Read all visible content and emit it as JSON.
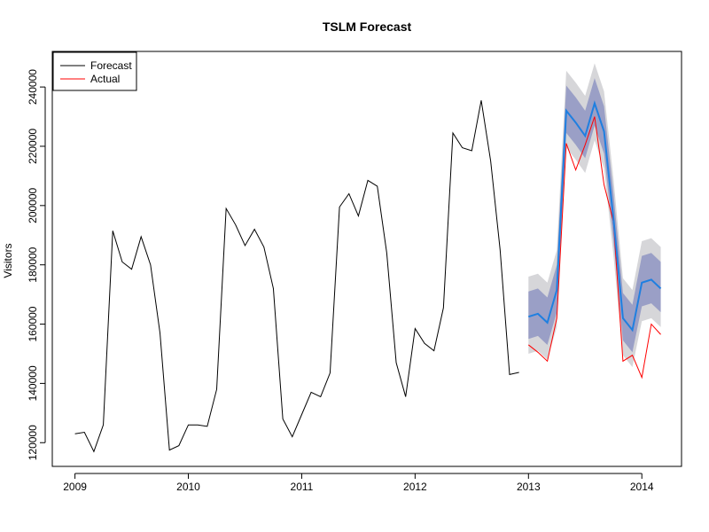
{
  "chart_data": {
    "type": "line",
    "title": "TSLM Forecast",
    "xlabel": "",
    "ylabel": "Visitors",
    "xlim": [
      2008.8,
      2014.35
    ],
    "ylim": [
      112000,
      252000
    ],
    "x_ticks": [
      2009,
      2010,
      2011,
      2012,
      2013,
      2014
    ],
    "y_ticks": [
      120000,
      140000,
      160000,
      180000,
      200000,
      220000,
      240000
    ],
    "grid": false,
    "legend": {
      "placement": "top-left",
      "entries": [
        {
          "label": "Forecast",
          "color": "#000000"
        },
        {
          "label": "Actual",
          "color": "#ff0000"
        }
      ]
    },
    "colors": {
      "history": "#000000",
      "forecast_mean": "#1f7fe0",
      "actual": "#ff0000",
      "band_80": "#9a9fc6",
      "band_95": "#d6d6d9"
    },
    "series": [
      {
        "kind": "history",
        "start": 2009.0,
        "step": 0.0833333,
        "values": [
          123000,
          123500,
          117000,
          126000,
          191500,
          181000,
          178500,
          189500,
          180000,
          157000,
          117500,
          119000,
          126000,
          126000,
          125500,
          138000,
          199000,
          193500,
          186500,
          192000,
          186000,
          172000,
          128000,
          122000,
          129500,
          137000,
          135500,
          143500,
          199500,
          204000,
          196500,
          208500,
          206500,
          184000,
          147000,
          135500,
          158500,
          153500,
          151000,
          165500,
          224500,
          219500,
          218500,
          235500,
          215000,
          185000,
          143000,
          143700
        ]
      },
      {
        "name": "Actual",
        "kind": "actual",
        "start": 2013.0,
        "step": 0.0833333,
        "values": [
          153000,
          150500,
          147500,
          162000,
          221000,
          212000,
          220500,
          230000,
          207000,
          194500,
          147500,
          149500,
          142000,
          160000,
          156500
        ]
      },
      {
        "name": "Forecast",
        "kind": "forecast",
        "start": 2013.0,
        "step": 0.0833333,
        "values": [
          162500,
          163500,
          160500,
          171500,
          232000,
          228000,
          223500,
          234500,
          225000,
          195500,
          162000,
          158000,
          174000,
          175000,
          172000
        ],
        "lo80": [
          155000,
          156000,
          153000,
          164000,
          224500,
          220500,
          216000,
          227000,
          217500,
          188000,
          154500,
          150500,
          166000,
          167000,
          164000
        ],
        "hi80": [
          171000,
          172000,
          169000,
          180000,
          240500,
          236500,
          232000,
          243000,
          233500,
          204000,
          170500,
          166500,
          183000,
          184000,
          181000
        ],
        "lo95": [
          150000,
          151000,
          148000,
          159000,
          219500,
          215500,
          211000,
          222000,
          212500,
          183000,
          149500,
          145500,
          161000,
          162000,
          159000
        ],
        "hi95": [
          176000,
          177000,
          174000,
          185000,
          245500,
          241500,
          237000,
          248000,
          238500,
          209000,
          175500,
          171500,
          188000,
          189000,
          186000
        ]
      }
    ]
  }
}
